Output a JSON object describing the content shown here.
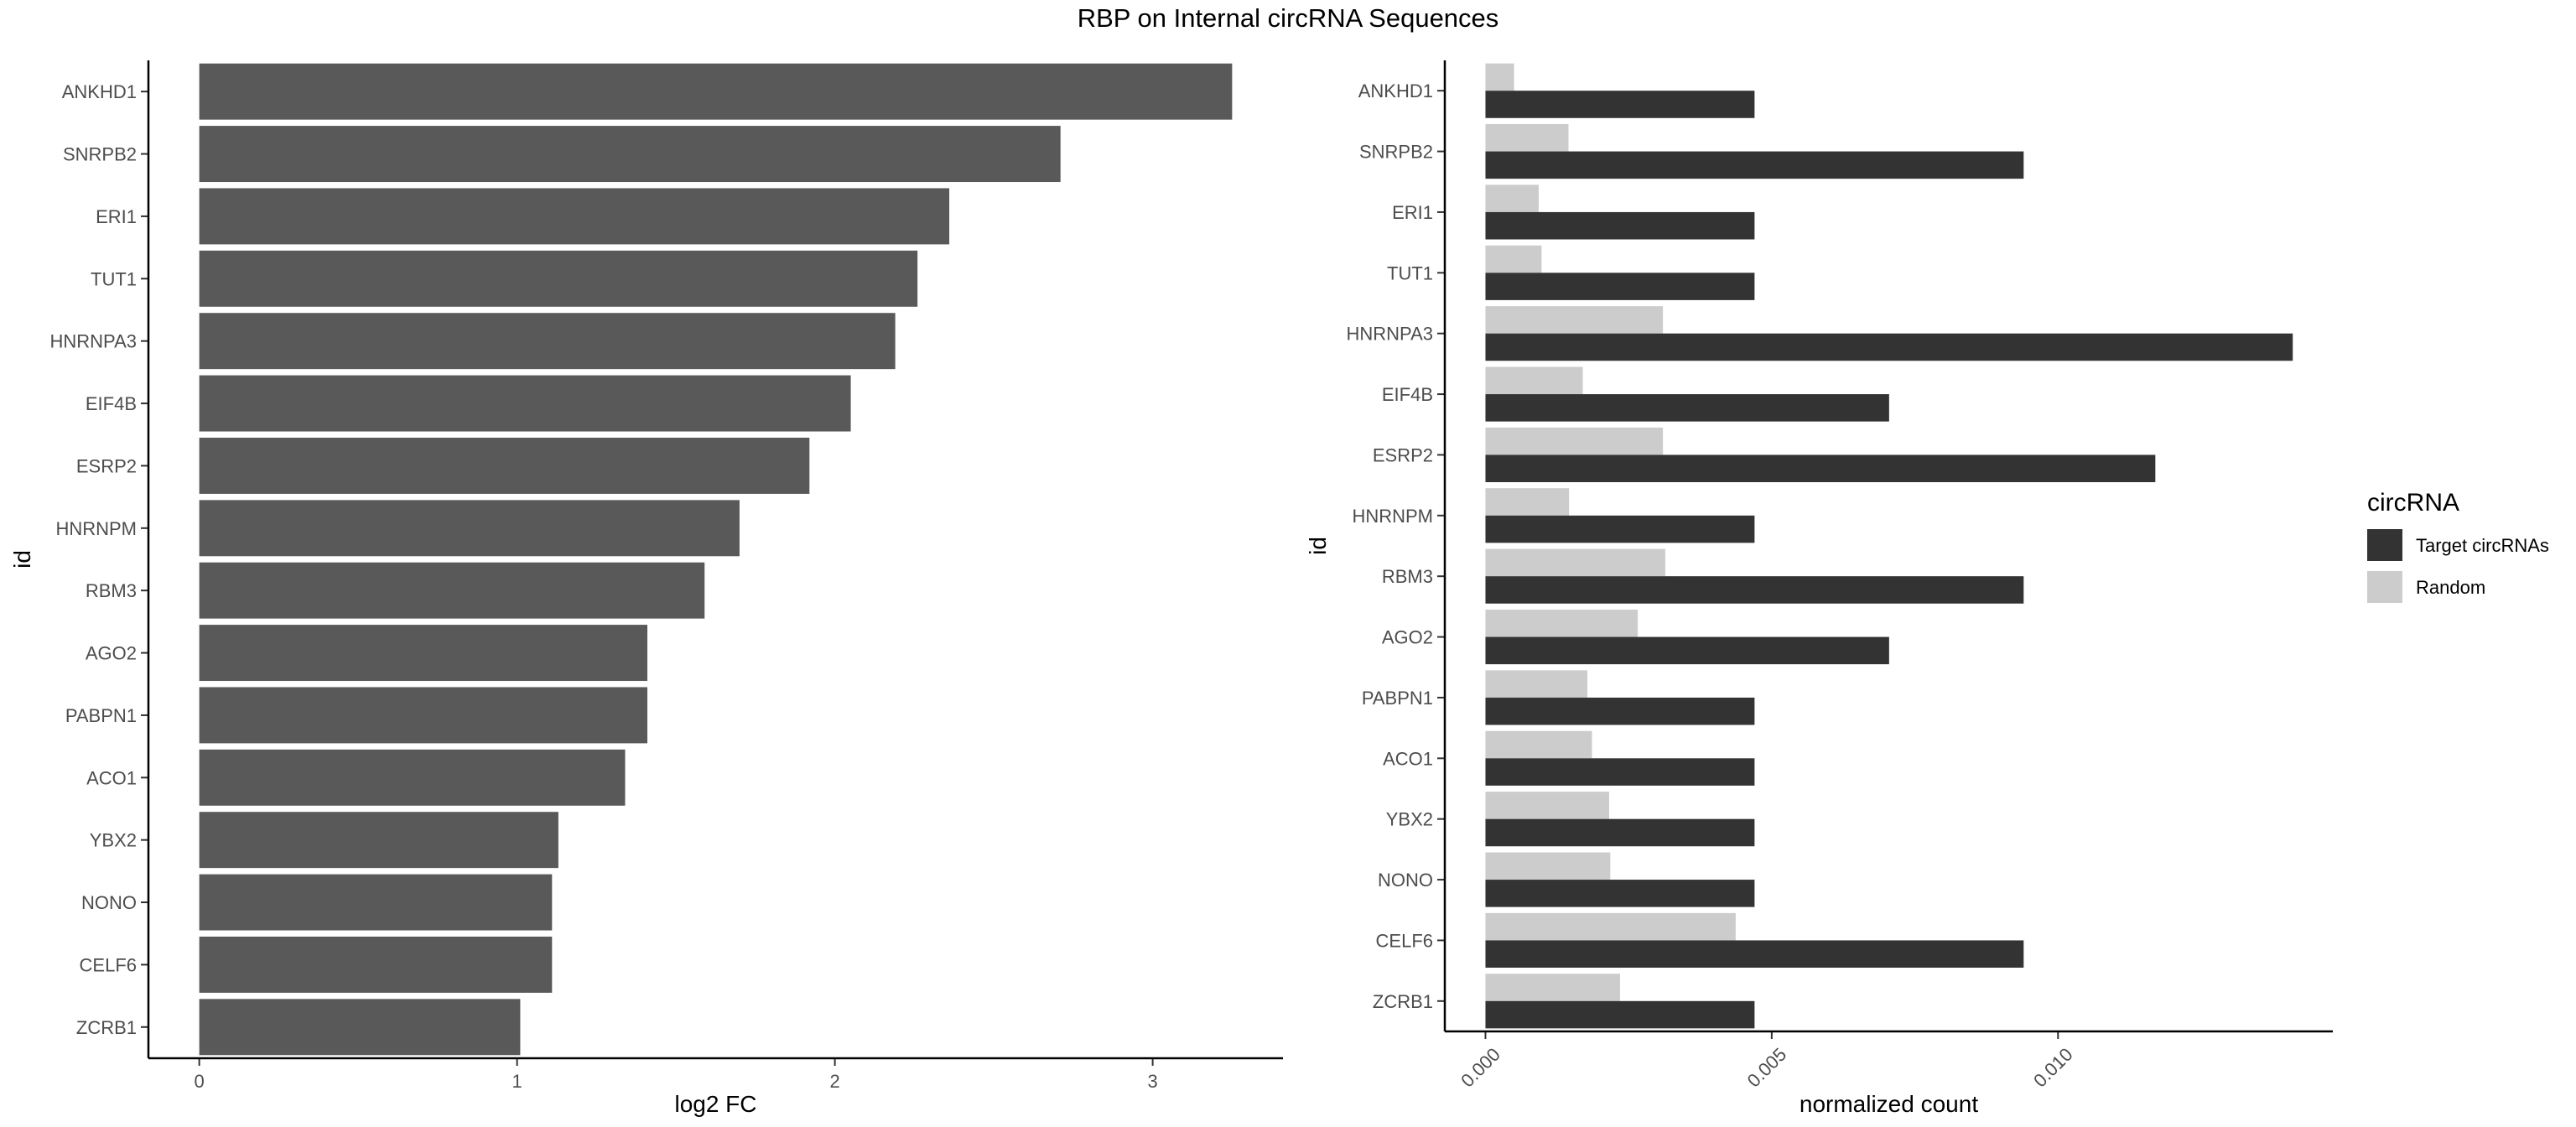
{
  "title": "RBP on Internal circRNA Sequences",
  "chart_data": [
    {
      "type": "bar",
      "orientation": "horizontal",
      "categories": [
        "ANKHD1",
        "SNRPB2",
        "ERI1",
        "TUT1",
        "HNRNPA3",
        "EIF4B",
        "ESRP2",
        "HNRNPM",
        "RBM3",
        "AGO2",
        "PABPN1",
        "ACO1",
        "YBX2",
        "NONO",
        "CELF6",
        "ZCRB1"
      ],
      "values": [
        3.25,
        2.71,
        2.36,
        2.26,
        2.19,
        2.05,
        1.92,
        1.7,
        1.59,
        1.41,
        1.41,
        1.34,
        1.13,
        1.11,
        1.11,
        1.01
      ],
      "xlabel": "log2 FC",
      "ylabel": "id",
      "xlim": [
        -0.16,
        3.41
      ],
      "xticks": [
        0,
        1,
        2,
        3
      ],
      "grid": false,
      "bar_color": "#595959"
    },
    {
      "type": "bar",
      "orientation": "horizontal",
      "grouped": true,
      "categories": [
        "ANKHD1",
        "SNRPB2",
        "ERI1",
        "TUT1",
        "HNRNPA3",
        "EIF4B",
        "ESRP2",
        "HNRNPM",
        "RBM3",
        "AGO2",
        "PABPN1",
        "ACO1",
        "YBX2",
        "NONO",
        "CELF6",
        "ZCRB1"
      ],
      "series": [
        {
          "name": "Target circRNAs",
          "color": "#333333",
          "values": [
            0.0047,
            0.0094,
            0.0047,
            0.0047,
            0.0141,
            0.00705,
            0.0117,
            0.0047,
            0.0094,
            0.00705,
            0.0047,
            0.0047,
            0.0047,
            0.0047,
            0.0094,
            0.0047
          ]
        },
        {
          "name": "Random",
          "color": "#cccccc",
          "values": [
            0.0005,
            0.00145,
            0.00093,
            0.00098,
            0.0031,
            0.0017,
            0.0031,
            0.00146,
            0.00314,
            0.00266,
            0.00178,
            0.00186,
            0.00216,
            0.00218,
            0.00437,
            0.00235
          ]
        }
      ],
      "xlabel": "normalized count",
      "ylabel": "id",
      "xlim": [
        -0.00071,
        0.0148
      ],
      "xticks": [
        0.0,
        0.005,
        0.01
      ],
      "xtick_labels": [
        "0.000",
        "0.005",
        "0.010"
      ],
      "grid": false,
      "legend": {
        "title": "circRNA",
        "position": "right"
      }
    }
  ]
}
